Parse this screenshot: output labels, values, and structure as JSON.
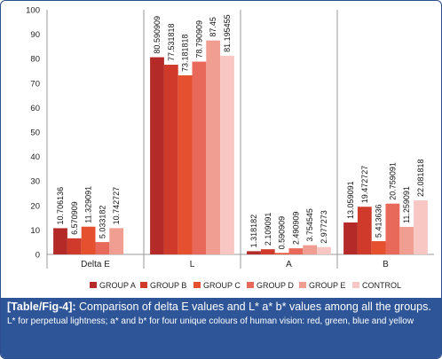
{
  "chart_data": {
    "type": "bar",
    "categories": [
      "Delta E",
      "L",
      "A",
      "B"
    ],
    "series": [
      {
        "name": "GROUP A",
        "color": "#b32a28",
        "values": [
          10.706136,
          80.590909,
          1.318182,
          13.059091
        ],
        "labels": [
          "10.706136",
          "80.590909",
          "1.318182",
          "13.059091"
        ]
      },
      {
        "name": "GROUP B",
        "color": "#cf3a2a",
        "values": [
          6.570909,
          77.531818,
          2.109091,
          19.472727
        ],
        "labels": [
          "6.570909",
          "77.531818",
          "2.109091",
          "19.472727"
        ]
      },
      {
        "name": "GROUP C",
        "color": "#e5502e",
        "values": [
          11.329091,
          73.181818,
          0.590909,
          5.413636
        ],
        "labels": [
          "11.329091",
          "73.181818",
          "0.590909",
          "5.413636"
        ]
      },
      {
        "name": "GROUP D",
        "color": "#e8695a",
        "values": [
          5.033182,
          78.790909,
          2.490909,
          20.759091
        ],
        "labels": [
          "5.033182",
          "78.790909",
          "2.490909",
          "20.759091"
        ]
      },
      {
        "name": "GROUP E",
        "color": "#f09d92",
        "values": [
          10.742727,
          87.45,
          3.754545,
          11.259091
        ],
        "labels": [
          "10.742727",
          "87.45",
          "3.754545",
          "11.259091"
        ]
      },
      {
        "name": "CONTROL",
        "color": "#f8c7c3",
        "values": [
          null,
          81.195455,
          2.977273,
          22.081818
        ],
        "labels": [
          "",
          "81.195455",
          "2.977273",
          "22.081818"
        ]
      }
    ],
    "ylim": [
      0,
      100
    ],
    "yticks": [
      "0",
      "10",
      "20",
      "30",
      "40",
      "50",
      "60",
      "70",
      "80",
      "90",
      "100"
    ],
    "grid": false,
    "legend": "bottom",
    "xlabel": "",
    "ylabel": ""
  },
  "caption": {
    "tag": "[Table/Fig-4]:",
    "text": " Comparison of delta E values and L* a* b* values among all the groups.",
    "note": "L* for perpetual lightness; a* and b* for four unique colours of human vision: red, green, blue and yellow"
  }
}
